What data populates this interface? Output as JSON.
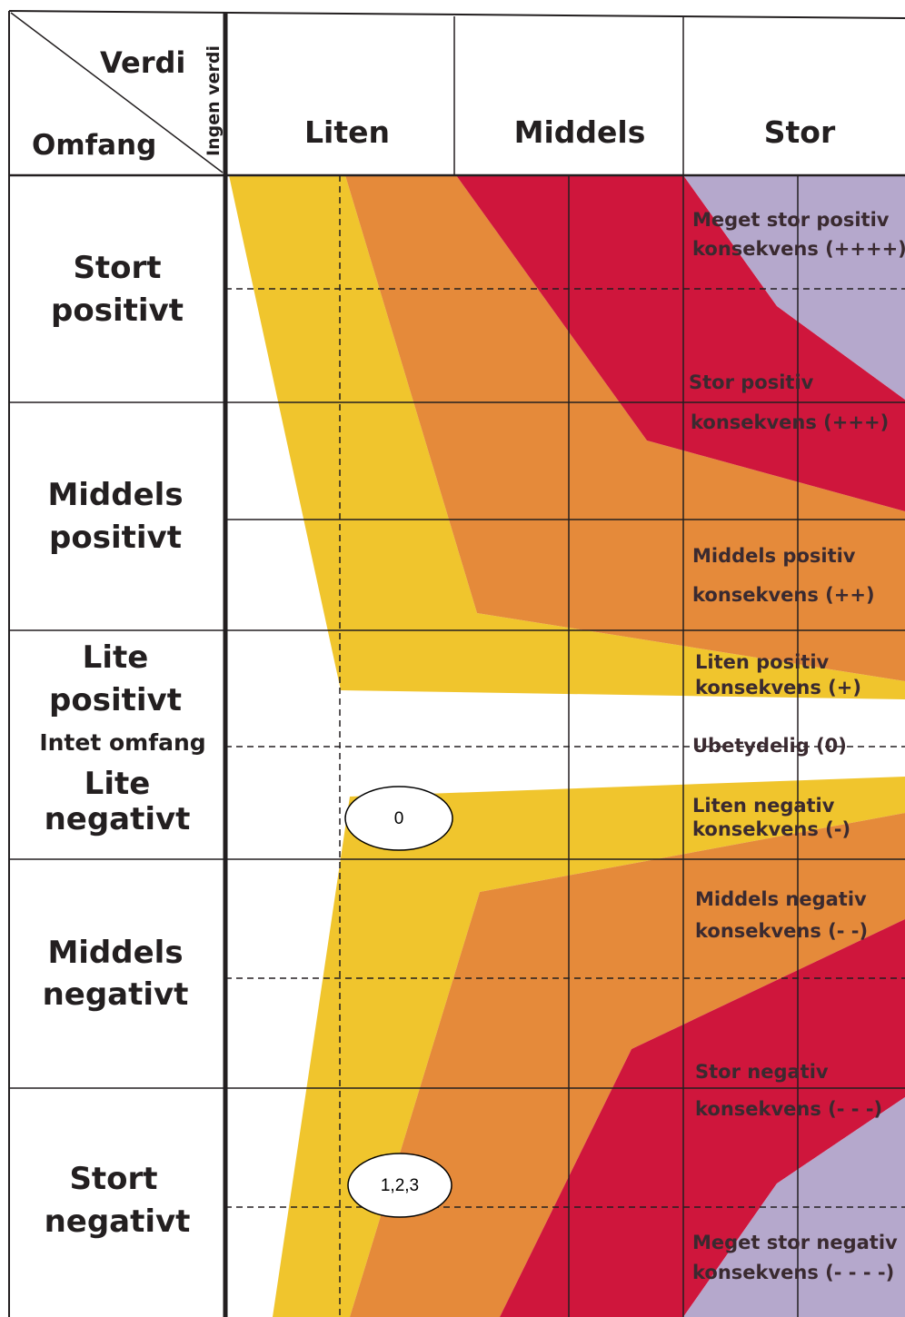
{
  "header": {
    "verdi": "Verdi",
    "omfang": "Omfang",
    "ingen_verdi": "Ingen verdi",
    "columns": [
      "Liten",
      "Middels",
      "Stor"
    ]
  },
  "rows": {
    "stort_positivt": [
      "Stort",
      "positivt"
    ],
    "middels_positivt": [
      "Middels",
      "positivt"
    ],
    "lite_positivt": [
      "Lite",
      "positivt"
    ],
    "intet_omfang": "Intet omfang",
    "lite_negativt": [
      "Lite",
      "negativt"
    ],
    "middels_negativt": [
      "Middels",
      "negativt"
    ],
    "stort_negativt": [
      "Stort",
      "negativt"
    ]
  },
  "consequences": {
    "meget_stor_positiv": [
      "Meget stor positiv",
      "konsekvens (++++)"
    ],
    "stor_positiv": [
      "Stor positiv",
      "konsekvens  (+++)"
    ],
    "middels_positiv": [
      "Middels positiv",
      "konsekvens (++)"
    ],
    "liten_positiv": [
      "Liten positiv",
      "konsekvens (+)"
    ],
    "ubetydelig": "Ubetydelig (0)",
    "liten_negativ": [
      "Liten negativ",
      "konsekvens (-)"
    ],
    "middels_negativ": [
      "Middels negativ",
      " konsekvens (- -)"
    ],
    "stor_negativ": [
      "Stor negativ",
      "konsekvens (- - -)"
    ],
    "meget_stor_negativ": [
      "Meget stor negativ",
      "konsekvens  (- - - -)"
    ]
  },
  "markers": {
    "zero": "0",
    "items": "1,2,3"
  },
  "colors": {
    "yellow": "#f0c52d",
    "orange": "#e58a3a",
    "red": "#cf163c",
    "lavender": "#b5a8cc",
    "line": "#231f20"
  }
}
